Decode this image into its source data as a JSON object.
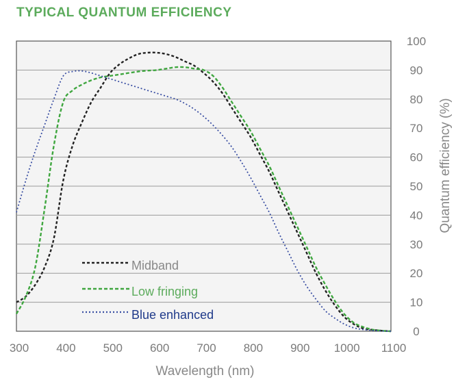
{
  "chart_data": {
    "type": "line",
    "title": "TYPICAL QUANTUM EFFICIENCY",
    "xlabel": "Wavelength (nm)",
    "ylabel": "Quantum efficiency (%)",
    "xlim": [
      300,
      1100
    ],
    "ylim": [
      0,
      100
    ],
    "xticks": [
      300,
      400,
      500,
      600,
      700,
      800,
      900,
      1000,
      1100
    ],
    "yticks": [
      0,
      10,
      20,
      30,
      40,
      50,
      60,
      70,
      80,
      90,
      100
    ],
    "y_axis_side": "right",
    "grid": "horizontal",
    "legend_placement": "bottom-left",
    "series": [
      {
        "name": "Midband",
        "color": "#222222",
        "label_color": "#888888",
        "dash": "4,3",
        "x": [
          300,
          320,
          340,
          360,
          380,
          400,
          420,
          440,
          460,
          480,
          500,
          520,
          540,
          560,
          580,
          600,
          620,
          640,
          660,
          680,
          700,
          720,
          740,
          760,
          780,
          800,
          820,
          840,
          860,
          880,
          900,
          920,
          940,
          960,
          980,
          1000,
          1020,
          1040,
          1060,
          1080,
          1100
        ],
        "y": [
          10,
          12,
          16,
          22,
          32,
          52,
          64,
          72,
          79,
          84,
          89,
          92,
          94,
          95.5,
          96,
          96,
          95.5,
          94.5,
          93,
          91.5,
          89,
          86,
          82,
          77,
          72,
          67,
          61,
          55,
          48,
          41,
          34,
          27,
          20,
          14,
          9,
          5,
          2.5,
          1,
          0.5,
          0.2,
          0
        ]
      },
      {
        "name": "Low fringing",
        "color": "#3fa63f",
        "label_color": "#5cab5c",
        "dash": "5,3",
        "x": [
          300,
          320,
          340,
          360,
          380,
          400,
          420,
          440,
          460,
          480,
          500,
          520,
          540,
          560,
          580,
          600,
          620,
          640,
          660,
          680,
          700,
          720,
          740,
          760,
          780,
          800,
          820,
          840,
          860,
          880,
          900,
          920,
          940,
          960,
          980,
          1000,
          1020,
          1040,
          1060,
          1080,
          1100
        ],
        "y": [
          6,
          12,
          22,
          42,
          64,
          79,
          83,
          85,
          86.5,
          87.5,
          88,
          88.5,
          89,
          89.5,
          89.8,
          90,
          90.5,
          91,
          91,
          90.5,
          90,
          88,
          84,
          79,
          74,
          69,
          63,
          57,
          50,
          43,
          36,
          29,
          22,
          16,
          10.5,
          6,
          3,
          1.5,
          0.6,
          0.2,
          0
        ]
      },
      {
        "name": "Blue enhanced",
        "color": "#3a4fa3",
        "label_color": "#1f3a8a",
        "dash": "2,3",
        "x": [
          300,
          320,
          340,
          360,
          380,
          400,
          420,
          440,
          460,
          480,
          500,
          520,
          540,
          560,
          580,
          600,
          620,
          640,
          660,
          680,
          700,
          720,
          740,
          760,
          780,
          800,
          820,
          840,
          860,
          880,
          900,
          920,
          940,
          960,
          980,
          1000,
          1020,
          1040,
          1060,
          1080,
          1100
        ],
        "y": [
          41,
          52,
          62,
          71,
          80,
          88,
          89.5,
          89.7,
          89,
          88,
          87,
          86,
          85,
          84,
          83,
          82,
          81,
          80,
          78.5,
          76.5,
          74,
          71,
          67.5,
          63.5,
          58.5,
          53,
          47,
          41,
          34,
          27.5,
          21,
          15.5,
          11,
          7,
          4.5,
          2.5,
          1.2,
          0.6,
          0.3,
          0.1,
          0
        ]
      }
    ]
  }
}
